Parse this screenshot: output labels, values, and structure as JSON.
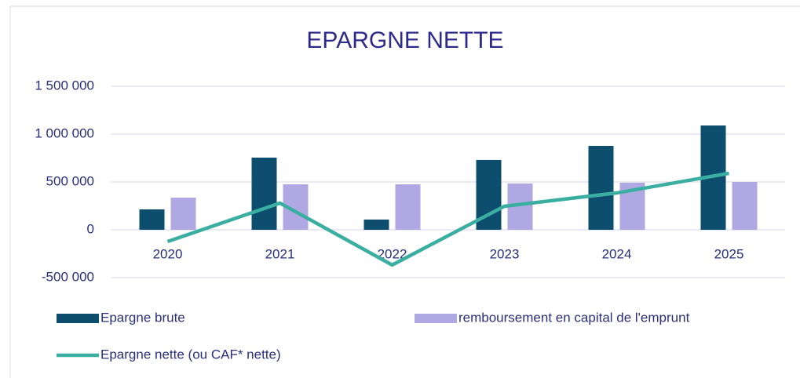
{
  "chart_data": {
    "type": "bar",
    "title": "EPARGNE NETTE",
    "categories": [
      "2020",
      "2021",
      "2022",
      "2023",
      "2024",
      "2025"
    ],
    "series": [
      {
        "name": "Epargne brute",
        "color": "#0d4d6e",
        "type": "bar",
        "values": [
          213000,
          754000,
          107000,
          730000,
          877000,
          1090000
        ]
      },
      {
        "name": "remboursement en capital de l'emprunt",
        "color": "#b0a8e2",
        "type": "bar",
        "values": [
          336000,
          475000,
          475000,
          484000,
          492000,
          500000
        ]
      },
      {
        "name": "Epargne nette (ou CAF* nette)",
        "color": "#3aaea0",
        "type": "line",
        "values": [
          -123000,
          279000,
          -368000,
          246000,
          385000,
          590000
        ]
      }
    ],
    "ylim": [
      -500000,
      1500000
    ],
    "yticks": [
      {
        "value": -500000,
        "label": "-500 000"
      },
      0,
      {
        "value": 500000,
        "label": "500 000"
      },
      {
        "value": 1000000,
        "label": "1 000 000"
      },
      {
        "value": 1500000,
        "label": "1 500 000"
      }
    ],
    "grid": true
  }
}
